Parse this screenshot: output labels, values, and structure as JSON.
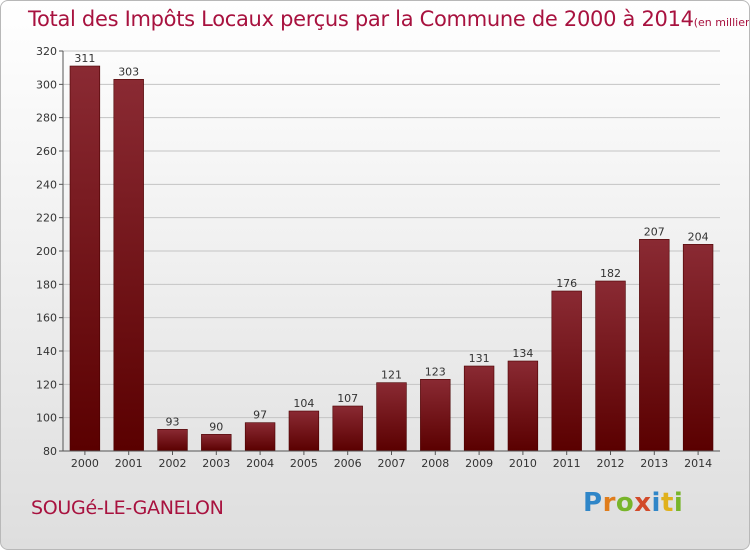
{
  "chart_data": {
    "type": "bar",
    "title": "Total des Impôts Locaux perçus par la Commune de 2000 à 2014",
    "unit_note": "(en milliers d'€)",
    "categories": [
      "2000",
      "2001",
      "2002",
      "2003",
      "2004",
      "2005",
      "2006",
      "2007",
      "2008",
      "2009",
      "2010",
      "2011",
      "2012",
      "2013",
      "2014"
    ],
    "values": [
      311,
      303,
      93,
      90,
      97,
      104,
      107,
      121,
      123,
      131,
      134,
      176,
      182,
      207,
      204
    ],
    "ylim": [
      80,
      320
    ],
    "yticks": [
      80,
      100,
      120,
      140,
      160,
      180,
      200,
      220,
      240,
      260,
      280,
      300,
      320
    ],
    "grid": true,
    "xlabel": "",
    "ylabel": ""
  },
  "footer": {
    "commune": "SOUGé-LE-GANELON",
    "logo_letters": [
      "P",
      "r",
      "o",
      "x",
      "i",
      "t",
      "i"
    ]
  },
  "colors": {
    "bar_top": "#8a2a33",
    "bar_bottom": "#5a0000",
    "title": "#a8123f"
  }
}
